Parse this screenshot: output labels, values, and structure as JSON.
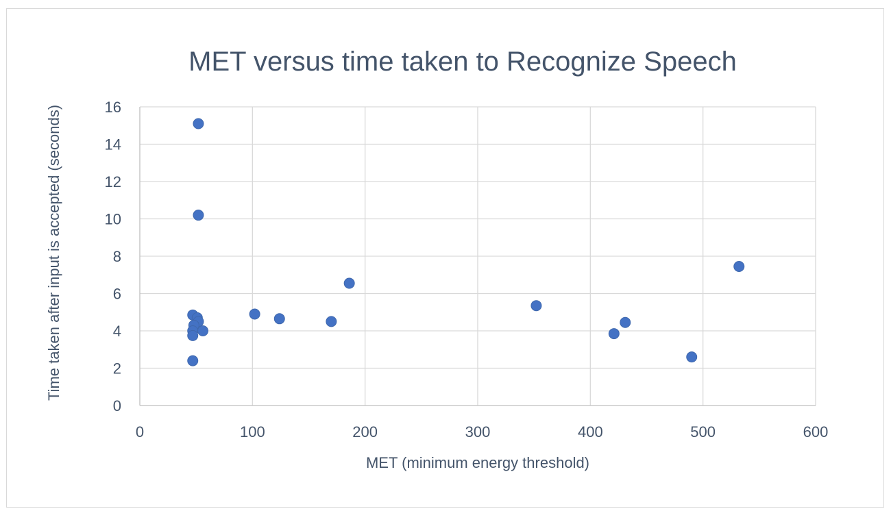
{
  "chart_data": {
    "type": "scatter",
    "title": "MET versus time taken to Recognize Speech",
    "xlabel": "MET (minimum energy threshold)",
    "ylabel": "Time taken after input is accepted (seconds)",
    "xlim": [
      0,
      600
    ],
    "ylim": [
      0,
      16
    ],
    "x_ticks": [
      "0",
      "100",
      "200",
      "300",
      "400",
      "500",
      "600"
    ],
    "y_ticks": [
      "0",
      "2",
      "4",
      "6",
      "8",
      "10",
      "12",
      "14",
      "16"
    ],
    "grid": true,
    "legend": "none",
    "marker_color": "#4472c4",
    "points": [
      {
        "x": 52,
        "y": 15.1
      },
      {
        "x": 52,
        "y": 10.2
      },
      {
        "x": 47,
        "y": 4.85
      },
      {
        "x": 51,
        "y": 4.7
      },
      {
        "x": 52,
        "y": 4.5
      },
      {
        "x": 48,
        "y": 4.3
      },
      {
        "x": 47,
        "y": 4.0
      },
      {
        "x": 56,
        "y": 4.0
      },
      {
        "x": 47,
        "y": 3.75
      },
      {
        "x": 47,
        "y": 2.4
      },
      {
        "x": 102,
        "y": 4.9
      },
      {
        "x": 124,
        "y": 4.65
      },
      {
        "x": 170,
        "y": 4.5
      },
      {
        "x": 186,
        "y": 6.55
      },
      {
        "x": 352,
        "y": 5.35
      },
      {
        "x": 421,
        "y": 3.85
      },
      {
        "x": 431,
        "y": 4.45
      },
      {
        "x": 490,
        "y": 2.6
      },
      {
        "x": 532,
        "y": 7.45
      }
    ]
  }
}
